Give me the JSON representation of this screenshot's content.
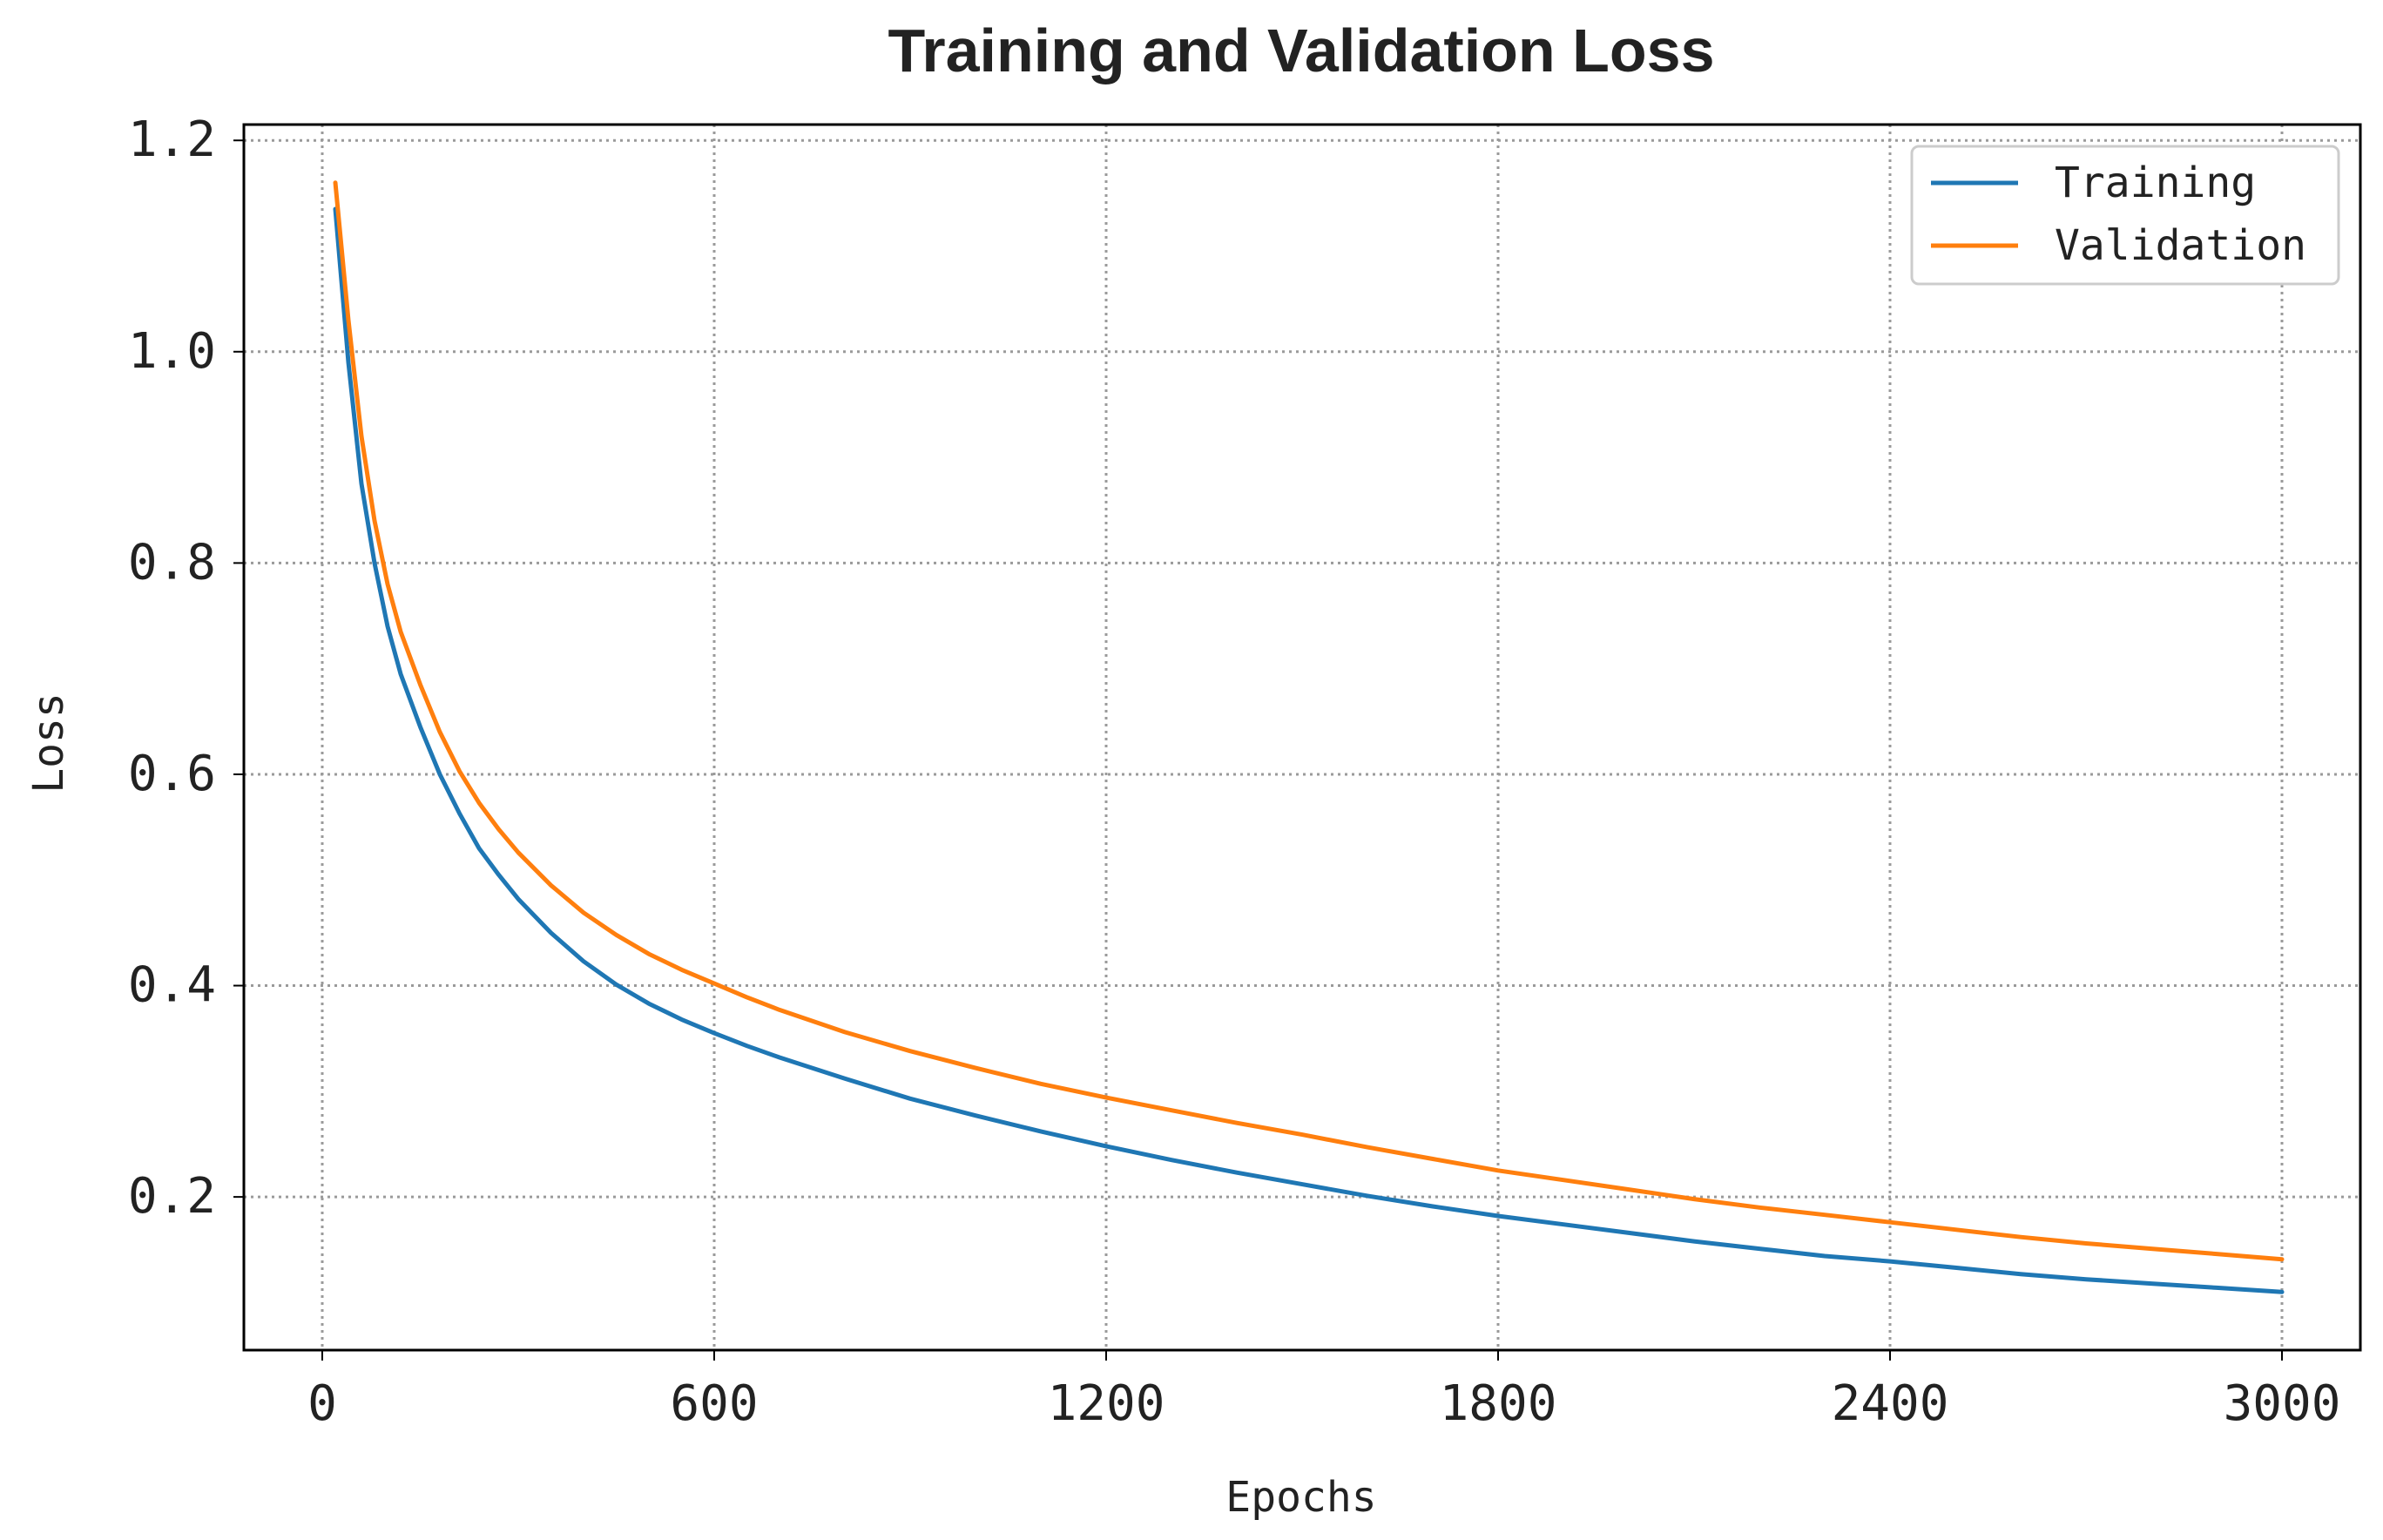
{
  "chart_data": {
    "type": "line",
    "title": "Training and Validation Loss",
    "xlabel": "Epochs",
    "ylabel": "Loss",
    "xlim": [
      -120,
      3120
    ],
    "ylim": [
      0.055,
      1.215
    ],
    "xticks": [
      0,
      600,
      1200,
      1800,
      2400,
      3000
    ],
    "xtick_labels": [
      "0",
      "600",
      "1200",
      "1800",
      "2400",
      "3000"
    ],
    "yticks": [
      0.2,
      0.4,
      0.6,
      0.8,
      1.0,
      1.2
    ],
    "ytick_labels": [
      "0.2",
      "0.4",
      "0.6",
      "0.8",
      "1.0",
      "1.2"
    ],
    "grid": true,
    "legend_position": "top-right",
    "x": [
      20,
      40,
      60,
      80,
      100,
      120,
      150,
      180,
      210,
      240,
      270,
      300,
      350,
      400,
      450,
      500,
      550,
      600,
      650,
      700,
      800,
      900,
      1000,
      1100,
      1200,
      1300,
      1400,
      1500,
      1600,
      1700,
      1800,
      1900,
      2000,
      2100,
      2200,
      2300,
      2400,
      2500,
      2600,
      2700,
      2800,
      2900,
      3000
    ],
    "series": [
      {
        "name": "Training",
        "color": "#1f77b4",
        "values": [
          1.135,
          0.99,
          0.875,
          0.8,
          0.74,
          0.695,
          0.645,
          0.6,
          0.563,
          0.53,
          0.505,
          0.482,
          0.45,
          0.423,
          0.401,
          0.383,
          0.368,
          0.355,
          0.343,
          0.332,
          0.312,
          0.293,
          0.277,
          0.262,
          0.248,
          0.235,
          0.223,
          0.212,
          0.201,
          0.191,
          0.182,
          0.174,
          0.166,
          0.158,
          0.151,
          0.144,
          0.139,
          0.133,
          0.127,
          0.122,
          0.118,
          0.114,
          0.11
        ]
      },
      {
        "name": "Validation",
        "color": "#ff7f0e",
        "values": [
          1.16,
          1.03,
          0.92,
          0.84,
          0.78,
          0.735,
          0.685,
          0.64,
          0.603,
          0.573,
          0.548,
          0.526,
          0.495,
          0.469,
          0.448,
          0.43,
          0.415,
          0.402,
          0.389,
          0.377,
          0.356,
          0.338,
          0.322,
          0.307,
          0.294,
          0.282,
          0.27,
          0.259,
          0.247,
          0.236,
          0.225,
          0.216,
          0.207,
          0.198,
          0.19,
          0.183,
          0.176,
          0.169,
          0.162,
          0.156,
          0.151,
          0.146,
          0.141
        ]
      }
    ]
  }
}
